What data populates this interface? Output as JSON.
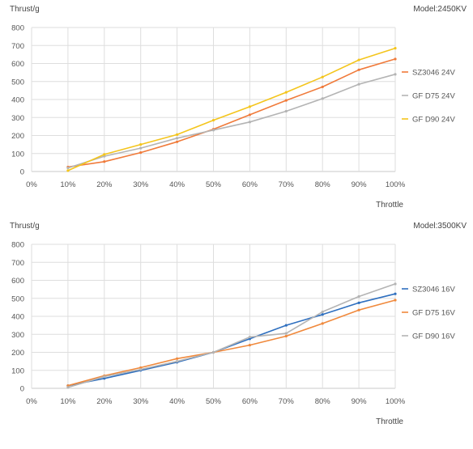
{
  "chart_data": [
    {
      "type": "line",
      "ylabel": "Thrust/g",
      "xlabel": "Throttle",
      "annotation": "Model:2450KV",
      "x": [
        "10%",
        "20%",
        "30%",
        "40%",
        "50%",
        "60%",
        "70%",
        "80%",
        "90%",
        "100%"
      ],
      "x_ticks": [
        "0%",
        "10%",
        "20%",
        "30%",
        "40%",
        "50%",
        "60%",
        "70%",
        "80%",
        "90%",
        "100%"
      ],
      "y_ticks": [
        0,
        100,
        200,
        300,
        400,
        500,
        600,
        700,
        800
      ],
      "ylim": [
        0,
        800
      ],
      "grid": true,
      "legend_position": "right",
      "series": [
        {
          "name": "SZ3046 24V",
          "color": "#f07a3a",
          "values": [
            25,
            55,
            105,
            165,
            235,
            315,
            395,
            470,
            565,
            625
          ]
        },
        {
          "name": "GF D75 24V",
          "color": "#b4b4b4",
          "values": [
            20,
            85,
            130,
            185,
            230,
            275,
            335,
            405,
            485,
            540
          ]
        },
        {
          "name": "GF D90 24V",
          "color": "#f4c51c",
          "values": [
            5,
            95,
            150,
            205,
            285,
            360,
            440,
            525,
            620,
            685
          ]
        }
      ]
    },
    {
      "type": "line",
      "ylabel": "Thrust/g",
      "xlabel": "Throttle",
      "annotation": "Model:3500KV",
      "x": [
        "10%",
        "20%",
        "30%",
        "40%",
        "50%",
        "60%",
        "70%",
        "80%",
        "90%",
        "100%"
      ],
      "x_ticks": [
        "0%",
        "10%",
        "20%",
        "30%",
        "40%",
        "50%",
        "60%",
        "70%",
        "80%",
        "90%",
        "100%"
      ],
      "y_ticks": [
        0,
        100,
        200,
        300,
        400,
        500,
        600,
        700,
        800
      ],
      "ylim": [
        0,
        800
      ],
      "grid": true,
      "legend_position": "right",
      "series": [
        {
          "name": "SZ3046 16V",
          "color": "#2e6fbf",
          "values": [
            15,
            55,
            100,
            145,
            200,
            275,
            350,
            410,
            475,
            525
          ]
        },
        {
          "name": "GF D75 16V",
          "color": "#f0893c",
          "values": [
            15,
            70,
            115,
            165,
            200,
            240,
            290,
            360,
            435,
            490
          ]
        },
        {
          "name": "GF D90 16V",
          "color": "#b4b4b4",
          "values": [
            5,
            65,
            105,
            150,
            200,
            285,
            305,
            425,
            510,
            580
          ]
        }
      ]
    }
  ]
}
